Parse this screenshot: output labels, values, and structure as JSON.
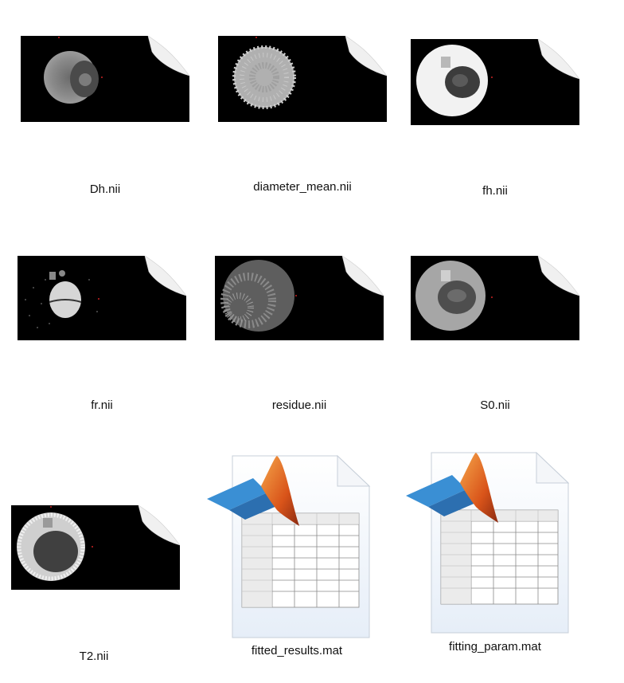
{
  "files": [
    {
      "name": "Dh.nii",
      "kind": "nifti",
      "variant": "dark-ring-gray"
    },
    {
      "name": "diameter_mean.nii",
      "kind": "nifti",
      "variant": "speckled-light"
    },
    {
      "name": "fh.nii",
      "kind": "nifti",
      "variant": "bright-with-dark-core"
    },
    {
      "name": "fr.nii",
      "kind": "nifti",
      "variant": "sparse-with-bright-core"
    },
    {
      "name": "residue.nii",
      "kind": "nifti",
      "variant": "speckled-dim"
    },
    {
      "name": "S0.nii",
      "kind": "nifti",
      "variant": "gray-with-dark-core"
    },
    {
      "name": "T2.nii",
      "kind": "nifti",
      "variant": "bright-ring"
    },
    {
      "name": "fitted_results.mat",
      "kind": "matlab-data",
      "icon": "matlab-mat-file-icon"
    },
    {
      "name": "fitting_param.mat",
      "kind": "matlab-data",
      "icon": "matlab-mat-file-icon"
    }
  ],
  "colors": {
    "background": "#ffffff",
    "thumb_black": "#000000",
    "page_curl": "#f2f2f2",
    "matlab_orange": "#e0621a",
    "matlab_blue": "#3a8fd4"
  }
}
